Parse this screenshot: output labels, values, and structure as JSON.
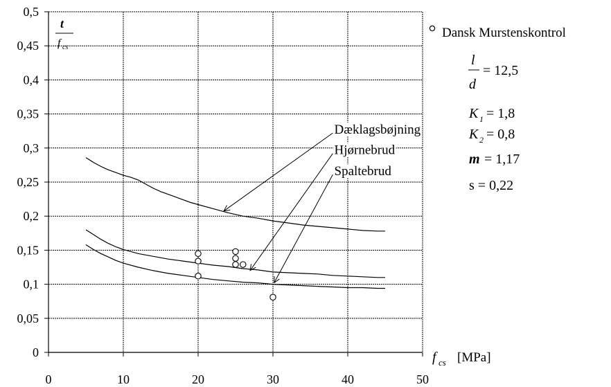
{
  "chart_data": {
    "type": "scatter",
    "x_axis": {
      "min": 0,
      "max": 50,
      "ticks": [
        0,
        10,
        20,
        30,
        40,
        50
      ],
      "tick_labels": [
        "0",
        "10",
        "20",
        "30",
        "40",
        "50"
      ],
      "label_main": "f",
      "label_sub": "cs",
      "label_unit": "[MPa]"
    },
    "y_axis": {
      "min": 0,
      "max": 0.5,
      "ticks": [
        0,
        0.05,
        0.1,
        0.15,
        0.2,
        0.25,
        0.3,
        0.35,
        0.4,
        0.45,
        0.5
      ],
      "tick_labels": [
        "0",
        "0,05",
        "0,1",
        "0,15",
        "0,2",
        "0,25",
        "0,3",
        "0,35",
        "0,4",
        "0,45",
        "0,5"
      ],
      "label_numerator": "t",
      "label_denominator_main": "f",
      "label_denominator_sub": "cs"
    },
    "grid": true,
    "series": [
      {
        "kind": "points",
        "name": "Dansk Murstenskontrol",
        "marker": "open-circle",
        "points": [
          [
            20,
            0.145
          ],
          [
            20,
            0.134
          ],
          [
            20,
            0.112
          ],
          [
            25,
            0.148
          ],
          [
            25,
            0.138
          ],
          [
            25,
            0.129
          ],
          [
            26,
            0.129
          ],
          [
            30,
            0.081
          ]
        ]
      },
      {
        "kind": "line",
        "curve": "daeklagsbojning",
        "points": [
          [
            5,
            0.286
          ],
          [
            6,
            0.279
          ],
          [
            7,
            0.273
          ],
          [
            8,
            0.268
          ],
          [
            9,
            0.264
          ],
          [
            10,
            0.26
          ],
          [
            11,
            0.257
          ],
          [
            12,
            0.253
          ],
          [
            13,
            0.247
          ],
          [
            14,
            0.241
          ],
          [
            15,
            0.236
          ],
          [
            16,
            0.232
          ],
          [
            17,
            0.228
          ],
          [
            18,
            0.224
          ],
          [
            19,
            0.22
          ],
          [
            20,
            0.217
          ],
          [
            22,
            0.211
          ],
          [
            24,
            0.205
          ],
          [
            26,
            0.2
          ],
          [
            28,
            0.197
          ],
          [
            30,
            0.193
          ],
          [
            32,
            0.19
          ],
          [
            34,
            0.187
          ],
          [
            36,
            0.185
          ],
          [
            38,
            0.183
          ],
          [
            40,
            0.181
          ],
          [
            42,
            0.179
          ],
          [
            44,
            0.178
          ],
          [
            45,
            0.178
          ]
        ]
      },
      {
        "kind": "line",
        "curve": "hjornebrud",
        "points": [
          [
            5,
            0.18
          ],
          [
            6,
            0.173
          ],
          [
            7,
            0.166
          ],
          [
            8,
            0.16
          ],
          [
            9,
            0.155
          ],
          [
            10,
            0.151
          ],
          [
            12,
            0.145
          ],
          [
            14,
            0.141
          ],
          [
            16,
            0.137
          ],
          [
            18,
            0.134
          ],
          [
            20,
            0.131
          ],
          [
            22,
            0.128
          ],
          [
            24,
            0.126
          ],
          [
            26,
            0.123
          ],
          [
            28,
            0.121
          ],
          [
            30,
            0.118
          ],
          [
            32,
            0.117
          ],
          [
            34,
            0.116
          ],
          [
            36,
            0.115
          ],
          [
            38,
            0.113
          ],
          [
            40,
            0.112
          ],
          [
            42,
            0.111
          ],
          [
            44,
            0.11
          ],
          [
            45,
            0.11
          ]
        ]
      },
      {
        "kind": "line",
        "curve": "spaltebrud",
        "points": [
          [
            5,
            0.158
          ],
          [
            6,
            0.151
          ],
          [
            7,
            0.145
          ],
          [
            8,
            0.14
          ],
          [
            9,
            0.135
          ],
          [
            10,
            0.131
          ],
          [
            12,
            0.125
          ],
          [
            14,
            0.12
          ],
          [
            16,
            0.116
          ],
          [
            18,
            0.113
          ],
          [
            20,
            0.11
          ],
          [
            22,
            0.107
          ],
          [
            24,
            0.105
          ],
          [
            26,
            0.103
          ],
          [
            28,
            0.102
          ],
          [
            30,
            0.1
          ],
          [
            32,
            0.099
          ],
          [
            34,
            0.098
          ],
          [
            36,
            0.097
          ],
          [
            38,
            0.096
          ],
          [
            40,
            0.095
          ],
          [
            42,
            0.095
          ],
          [
            44,
            0.094
          ],
          [
            45,
            0.094
          ]
        ]
      }
    ],
    "annotations": [
      {
        "key": "daeklagsbojning",
        "text": "Dæklagsbøjning",
        "text_x": 38.2,
        "text_y": 0.322,
        "arrow_from": [
          38,
          0.322
        ],
        "arrow_to": [
          23.5,
          0.208
        ]
      },
      {
        "key": "hjornebrud",
        "text": "Hjørnebrud",
        "text_x": 38.2,
        "text_y": 0.292,
        "arrow_from": [
          38,
          0.292
        ],
        "arrow_to": [
          27,
          0.121
        ]
      },
      {
        "key": "spaltebrud",
        "text": "Spaltebrud",
        "text_x": 38.2,
        "text_y": 0.261,
        "arrow_from": [
          38,
          0.261
        ],
        "arrow_to": [
          30.2,
          0.103
        ]
      }
    ],
    "legend": {
      "placement": "top-right",
      "marker": "open-circle",
      "label": "Dansk Murstenskontrol"
    },
    "parameters": {
      "ratio_numerator": "l",
      "ratio_denominator": "d",
      "ratio_value": "= 12,5",
      "k1_main": "K",
      "k1_sub": "1",
      "k1_value": " = 1,8",
      "k2_main": "K",
      "k2_sub": "2",
      "k2_value": " = 0,8",
      "mu_main": "m",
      "mu_value": " = 1,17",
      "s_text": "s = 0,22"
    }
  }
}
